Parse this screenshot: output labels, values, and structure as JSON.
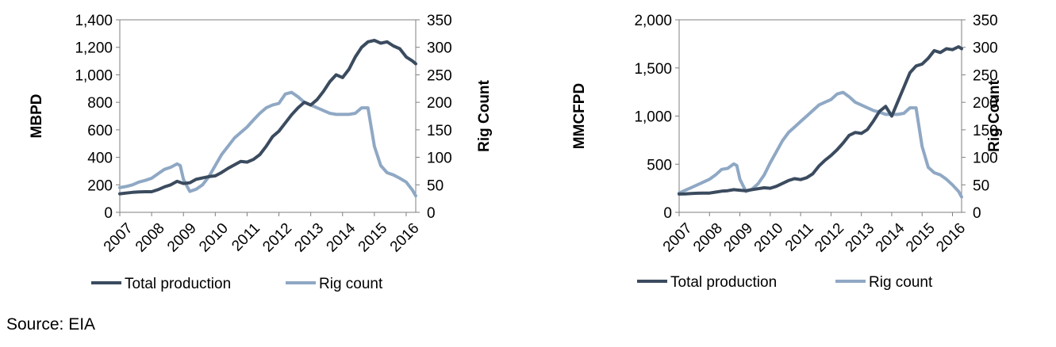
{
  "source": "Source: EIA",
  "colors": {
    "production": "#3B4B5F",
    "rigs": "#8FA8C4",
    "axis": "#7f7f7f"
  },
  "chart_data": [
    {
      "type": "line",
      "title": "",
      "ylabel": "MBPD",
      "y2label": "Rig Count",
      "xlim": [
        2007,
        2016.3
      ],
      "ylim": [
        0,
        1400
      ],
      "y2lim": [
        0,
        350
      ],
      "xticks": [
        "2007",
        "2008",
        "2009",
        "2010",
        "2011",
        "2012",
        "2013",
        "2014",
        "2015",
        "2016"
      ],
      "yticks": [
        "0",
        "200",
        "400",
        "600",
        "800",
        "1,000",
        "1,200",
        "1,400"
      ],
      "y2ticks": [
        "0",
        "50",
        "100",
        "150",
        "200",
        "250",
        "300",
        "350"
      ],
      "grid": "horizontal",
      "legend": "bottom",
      "series": [
        {
          "name": "Total production",
          "axis": "left",
          "x": [
            2007.0,
            2007.2,
            2007.4,
            2007.6,
            2007.8,
            2008.0,
            2008.2,
            2008.4,
            2008.6,
            2008.8,
            2009.0,
            2009.2,
            2009.4,
            2009.6,
            2009.8,
            2010.0,
            2010.2,
            2010.4,
            2010.6,
            2010.8,
            2011.0,
            2011.2,
            2011.4,
            2011.6,
            2011.8,
            2012.0,
            2012.2,
            2012.4,
            2012.6,
            2012.8,
            2013.0,
            2013.2,
            2013.4,
            2013.6,
            2013.8,
            2014.0,
            2014.2,
            2014.4,
            2014.6,
            2014.8,
            2015.0,
            2015.2,
            2015.4,
            2015.6,
            2015.8,
            2016.0,
            2016.2,
            2016.3
          ],
          "values": [
            135,
            140,
            145,
            148,
            150,
            150,
            165,
            185,
            200,
            225,
            210,
            215,
            240,
            250,
            260,
            265,
            290,
            320,
            345,
            370,
            365,
            385,
            420,
            480,
            550,
            590,
            650,
            710,
            760,
            800,
            780,
            820,
            880,
            950,
            1000,
            980,
            1040,
            1130,
            1200,
            1240,
            1250,
            1230,
            1240,
            1210,
            1190,
            1130,
            1100,
            1080
          ]
        },
        {
          "name": "Rig count",
          "axis": "right",
          "x": [
            2007.0,
            2007.2,
            2007.4,
            2007.6,
            2007.8,
            2008.0,
            2008.2,
            2008.4,
            2008.6,
            2008.8,
            2008.9,
            2009.0,
            2009.2,
            2009.4,
            2009.6,
            2009.8,
            2010.0,
            2010.2,
            2010.4,
            2010.6,
            2010.8,
            2011.0,
            2011.2,
            2011.4,
            2011.6,
            2011.8,
            2012.0,
            2012.2,
            2012.4,
            2012.6,
            2012.8,
            2013.0,
            2013.2,
            2013.4,
            2013.6,
            2013.8,
            2014.0,
            2014.2,
            2014.4,
            2014.6,
            2014.8,
            2015.0,
            2015.2,
            2015.4,
            2015.6,
            2015.8,
            2016.0,
            2016.2,
            2016.3
          ],
          "values": [
            45,
            47,
            50,
            55,
            58,
            62,
            70,
            78,
            82,
            88,
            85,
            60,
            38,
            42,
            50,
            65,
            85,
            105,
            120,
            135,
            145,
            155,
            168,
            180,
            190,
            195,
            198,
            215,
            218,
            210,
            200,
            195,
            190,
            185,
            180,
            178,
            178,
            178,
            180,
            190,
            190,
            120,
            85,
            72,
            68,
            62,
            55,
            40,
            30
          ]
        }
      ]
    },
    {
      "type": "line",
      "title": "",
      "ylabel": "MMCFPD",
      "y2label": "Rig Count",
      "xlim": [
        2007,
        2016.3
      ],
      "ylim": [
        0,
        2000
      ],
      "y2lim": [
        0,
        350
      ],
      "xticks": [
        "2007",
        "2008",
        "2009",
        "2010",
        "2011",
        "2012",
        "2013",
        "2014",
        "2015",
        "2016"
      ],
      "yticks": [
        "0",
        "500",
        "1,000",
        "1,500",
        "2,000"
      ],
      "y2ticks": [
        "0",
        "50",
        "100",
        "150",
        "200",
        "250",
        "300",
        "350"
      ],
      "grid": "horizontal",
      "legend": "bottom",
      "series": [
        {
          "name": "Total production",
          "axis": "left",
          "x": [
            2007.0,
            2007.2,
            2007.4,
            2007.6,
            2007.8,
            2008.0,
            2008.2,
            2008.4,
            2008.6,
            2008.8,
            2009.0,
            2009.2,
            2009.4,
            2009.6,
            2009.8,
            2010.0,
            2010.2,
            2010.4,
            2010.6,
            2010.8,
            2011.0,
            2011.2,
            2011.4,
            2011.6,
            2011.8,
            2012.0,
            2012.2,
            2012.4,
            2012.6,
            2012.8,
            2013.0,
            2013.2,
            2013.4,
            2013.6,
            2013.8,
            2014.0,
            2014.2,
            2014.4,
            2014.6,
            2014.8,
            2015.0,
            2015.2,
            2015.4,
            2015.6,
            2015.8,
            2016.0,
            2016.2,
            2016.3
          ],
          "values": [
            190,
            192,
            195,
            198,
            200,
            200,
            210,
            220,
            225,
            235,
            230,
            225,
            235,
            245,
            255,
            250,
            270,
            300,
            330,
            350,
            340,
            360,
            400,
            480,
            540,
            590,
            650,
            720,
            800,
            830,
            820,
            860,
            950,
            1050,
            1100,
            1000,
            1150,
            1300,
            1450,
            1520,
            1540,
            1600,
            1680,
            1660,
            1700,
            1690,
            1720,
            1700
          ]
        },
        {
          "name": "Rig count",
          "axis": "right",
          "x": [
            2007.0,
            2007.2,
            2007.4,
            2007.6,
            2007.8,
            2008.0,
            2008.2,
            2008.4,
            2008.6,
            2008.8,
            2008.9,
            2009.0,
            2009.2,
            2009.4,
            2009.6,
            2009.8,
            2010.0,
            2010.2,
            2010.4,
            2010.6,
            2010.8,
            2011.0,
            2011.2,
            2011.4,
            2011.6,
            2011.8,
            2012.0,
            2012.2,
            2012.4,
            2012.6,
            2012.8,
            2013.0,
            2013.2,
            2013.4,
            2013.6,
            2013.8,
            2014.0,
            2014.2,
            2014.4,
            2014.6,
            2014.8,
            2015.0,
            2015.2,
            2015.4,
            2015.6,
            2015.8,
            2016.0,
            2016.2,
            2016.3
          ],
          "values": [
            35,
            40,
            45,
            50,
            55,
            60,
            68,
            78,
            80,
            88,
            85,
            60,
            38,
            42,
            52,
            68,
            90,
            110,
            130,
            145,
            155,
            165,
            175,
            185,
            195,
            200,
            205,
            215,
            218,
            210,
            200,
            195,
            190,
            185,
            182,
            178,
            178,
            178,
            180,
            190,
            190,
            120,
            82,
            72,
            68,
            60,
            50,
            38,
            28
          ]
        }
      ]
    }
  ]
}
